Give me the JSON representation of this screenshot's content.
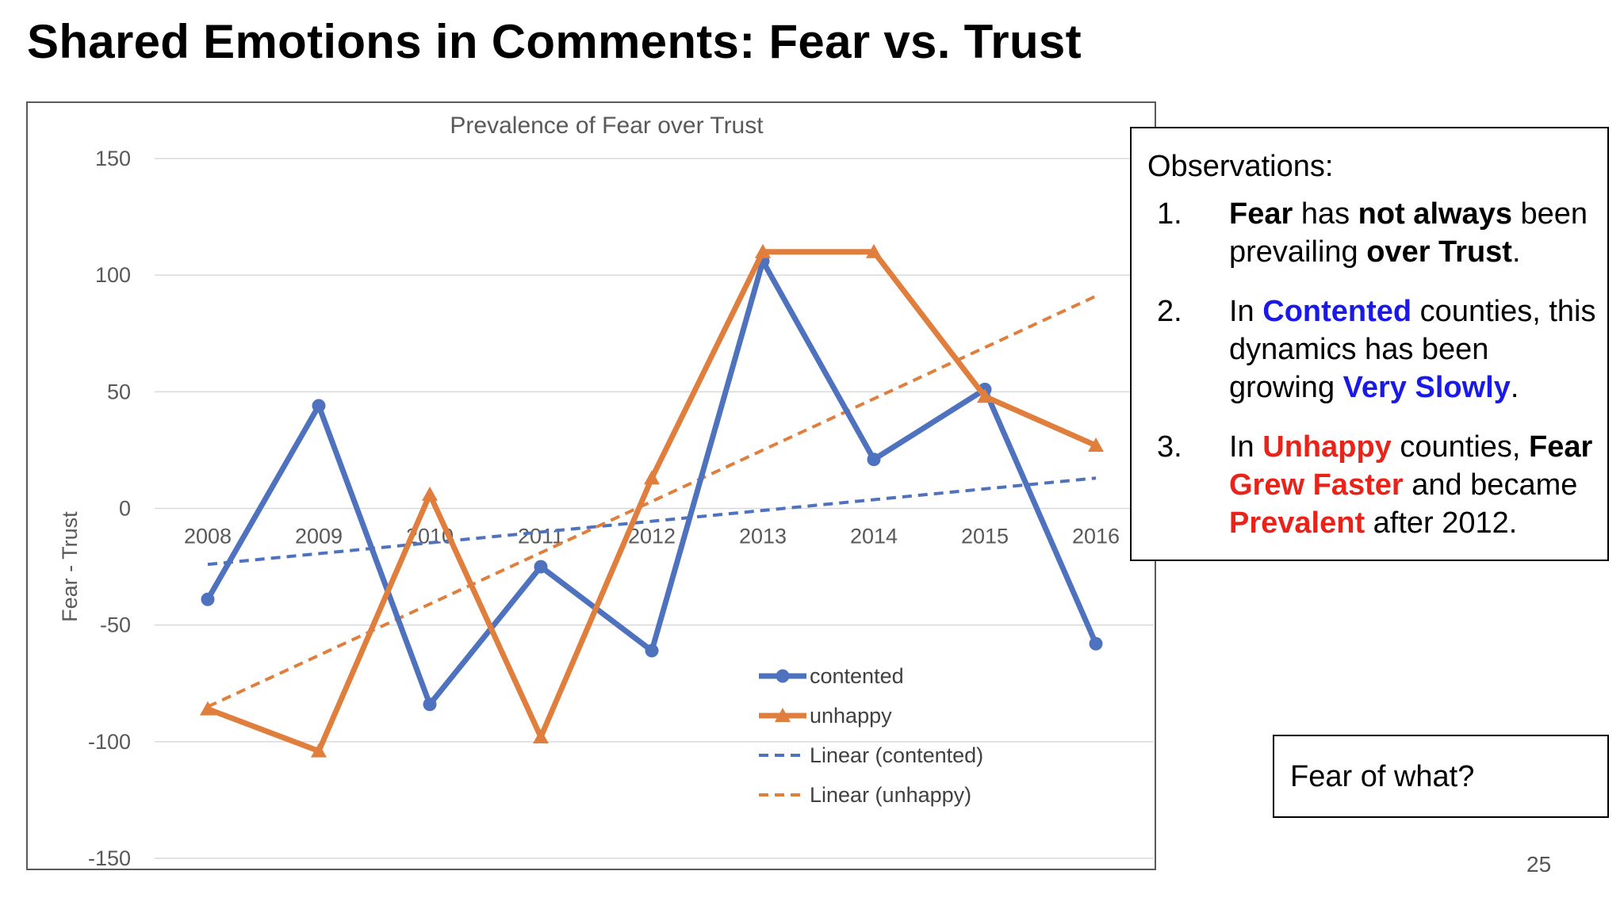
{
  "slide": {
    "title": "Shared Emotions in Comments: Fear vs. Trust",
    "page_number": "25"
  },
  "observations": {
    "heading": "Observations:",
    "items": [
      {
        "num": "1.",
        "segments": [
          {
            "text": "Fear",
            "style": "b"
          },
          {
            "text": " has ",
            "style": ""
          },
          {
            "text": "not always",
            "style": "b"
          },
          {
            "text": " been prevailing ",
            "style": ""
          },
          {
            "text": "over Trust",
            "style": "b"
          },
          {
            "text": ".",
            "style": ""
          }
        ]
      },
      {
        "num": "2.",
        "segments": [
          {
            "text": "In ",
            "style": ""
          },
          {
            "text": "Contented",
            "style": "blue"
          },
          {
            "text": " counties, this dynamics has been growing ",
            "style": ""
          },
          {
            "text": "Very Slowly",
            "style": "blue"
          },
          {
            "text": ".",
            "style": ""
          }
        ]
      },
      {
        "num": "3.",
        "segments": [
          {
            "text": "In ",
            "style": ""
          },
          {
            "text": "Unhappy",
            "style": "red"
          },
          {
            "text": " counties, ",
            "style": ""
          },
          {
            "text": "Fear",
            "style": "b"
          },
          {
            "text": " ",
            "style": ""
          },
          {
            "text": "Grew Faster",
            "style": "red"
          },
          {
            "text": " and became ",
            "style": ""
          },
          {
            "text": "Prevalent",
            "style": "red"
          },
          {
            "text": " after 2012.",
            "style": ""
          }
        ]
      }
    ]
  },
  "question_box": {
    "text": "Fear of what?"
  },
  "colors": {
    "contented": "#4f72be",
    "unhappy": "#e07f3d",
    "emphasis_blue": "#1a1ae8",
    "emphasis_red": "#e8231a"
  },
  "chart_data": {
    "type": "line",
    "title": "Prevalence of Fear over Trust",
    "xlabel": "",
    "ylabel": "Fear - Trust",
    "categories": [
      "2008",
      "2009",
      "2010",
      "2011",
      "2012",
      "2013",
      "2014",
      "2015",
      "2016"
    ],
    "y_ticks": [
      150,
      100,
      50,
      0,
      -50,
      -100,
      -150
    ],
    "ylim": [
      -150,
      150
    ],
    "grid": true,
    "legend_position": "bottom-right",
    "series": [
      {
        "name": "contented",
        "marker": "circle",
        "values": [
          -39,
          44,
          -84,
          -25,
          -61,
          106,
          21,
          51,
          -58
        ]
      },
      {
        "name": "unhappy",
        "marker": "triangle",
        "values": [
          -86,
          -104,
          6,
          -98,
          13,
          110,
          110,
          48,
          27
        ]
      }
    ],
    "trendlines": [
      {
        "name": "Linear (contented)",
        "of": "contented",
        "dashed": true,
        "start": -24,
        "end": 13
      },
      {
        "name": "Linear (unhappy)",
        "of": "unhappy",
        "dashed": true,
        "start": -85,
        "end": 91
      }
    ]
  }
}
